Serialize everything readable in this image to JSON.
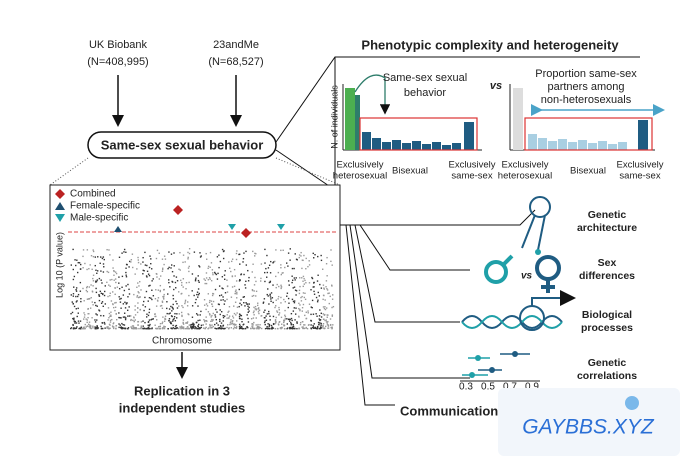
{
  "sources": [
    {
      "name": "UK Biobank",
      "n": "(N=408,995)"
    },
    {
      "name": "23andMe",
      "n": "(N=68,527)"
    }
  ],
  "phenotype": "Same-sex sexual behavior",
  "complexity": {
    "title": "Phenotypic complexity and heterogeneity",
    "left_label": [
      "Same-sex sexual",
      "behavior"
    ],
    "vs": "vs",
    "right_label": [
      "Proportion same-sex",
      "partners among",
      "non-heterosexuals"
    ],
    "y_axis": "N. of individuals",
    "x_labels": [
      [
        "Exclusively",
        "heterosexual"
      ],
      [
        "Bisexual"
      ],
      [
        "Exclusively",
        "same-sex"
      ]
    ]
  },
  "manhattan": {
    "legend": [
      "Combined",
      "Female-specific",
      "Male-specific"
    ],
    "y_axis": "Log 10 (P value)",
    "x_axis": "Chromosome"
  },
  "replication": [
    "Replication in 3",
    "independent studies"
  ],
  "findings": [
    [
      "Genetic",
      "architecture"
    ],
    [
      "Sex",
      "differences"
    ],
    [
      "Biological",
      "processes"
    ],
    [
      "Genetic",
      "correlations"
    ]
  ],
  "sex_vs": "vs",
  "corr_ticks": [
    "0.3",
    "0.5",
    "0.7",
    "0.9"
  ],
  "communication": "Communication",
  "watermark": "GAYBBS.XYZ"
}
